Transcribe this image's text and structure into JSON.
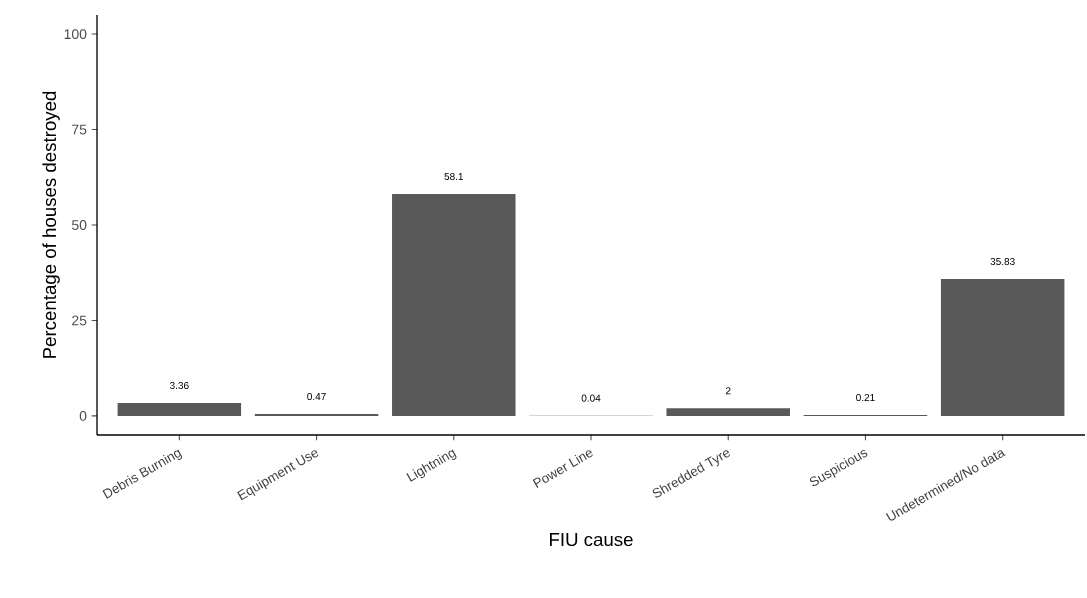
{
  "chart_data": {
    "type": "bar",
    "xlabel": "FIU cause",
    "ylabel": "Percentage of houses destroyed",
    "categories": [
      "Debris Burning",
      "Equipment Use",
      "Lightning",
      "Power Line",
      "Shredded Tyre",
      "Suspicious",
      "Undetermined/No data"
    ],
    "values": [
      3.36,
      0.47,
      58.1,
      0.04,
      2,
      0.21,
      35.83
    ],
    "color": "#595959",
    "ylim": [
      -5,
      105
    ],
    "yticks": [
      0,
      25,
      50,
      75,
      100
    ],
    "data_labels": true
  }
}
